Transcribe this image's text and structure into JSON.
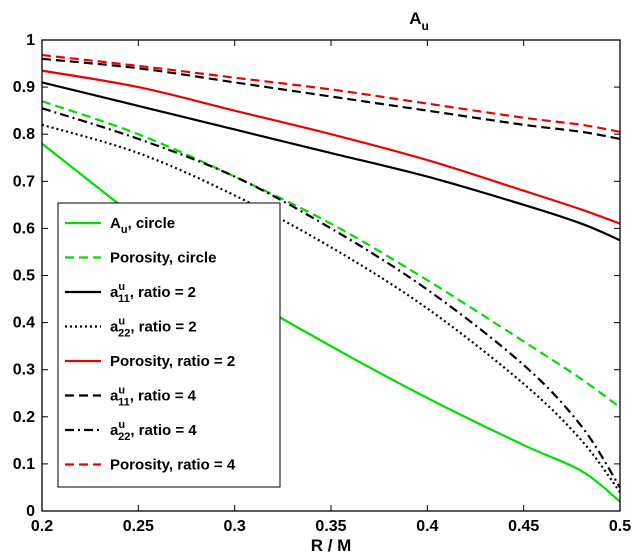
{
  "chart_data": {
    "type": "line",
    "title": "A",
    "title_sub": "u",
    "xlabel": "R / M",
    "ylabel": "",
    "xlim": [
      0.2,
      0.5
    ],
    "ylim": [
      0,
      1
    ],
    "x_ticks": [
      0.2,
      0.25,
      0.3,
      0.35,
      0.4,
      0.45,
      0.5
    ],
    "x_tick_labels": [
      "0.2",
      "0.25",
      "0.3",
      "0.35",
      "0.4",
      "0.45",
      "0.5"
    ],
    "y_ticks": [
      0,
      0.1,
      0.2,
      0.3,
      0.4,
      0.5,
      0.6,
      0.7,
      0.8,
      0.9,
      1
    ],
    "y_tick_labels": [
      "0",
      "0.1",
      "0.2",
      "0.3",
      "0.4",
      "0.5",
      "0.6",
      "0.7",
      "0.8",
      "0.9",
      "1"
    ],
    "grid": false,
    "legend_position": "bottom-left",
    "x": [
      0.2,
      0.25,
      0.3,
      0.35,
      0.4,
      0.45,
      0.48,
      0.5
    ],
    "series": [
      {
        "name": "A_u, circle",
        "legend": {
          "main": "A",
          "sup": "",
          "sub": "u",
          "suffix": ", circle"
        },
        "color": "#00dd00",
        "dash": "solid",
        "values": [
          0.78,
          0.62,
          0.47,
          0.35,
          0.24,
          0.14,
          0.085,
          0.02
        ]
      },
      {
        "name": "Porosity, circle",
        "legend": {
          "main": "Porosity, circle",
          "sup": "",
          "sub": "",
          "suffix": ""
        },
        "color": "#00dd00",
        "dash": "dashed",
        "values": [
          0.87,
          0.8,
          0.71,
          0.61,
          0.49,
          0.36,
          0.28,
          0.22
        ]
      },
      {
        "name": "a11u, ratio = 2",
        "legend": {
          "main": "a",
          "sup": "u",
          "sub": "11",
          "suffix": ", ratio = 2"
        },
        "color": "#000000",
        "dash": "solid",
        "values": [
          0.91,
          0.86,
          0.81,
          0.76,
          0.71,
          0.65,
          0.61,
          0.575
        ]
      },
      {
        "name": "a22u, ratio = 2",
        "legend": {
          "main": "a",
          "sup": "u",
          "sub": "22",
          "suffix": ", ratio = 2"
        },
        "color": "#000000",
        "dash": "dotted",
        "values": [
          0.82,
          0.76,
          0.67,
          0.56,
          0.43,
          0.27,
          0.15,
          0.04
        ]
      },
      {
        "name": "Porosity, ratio = 2",
        "legend": {
          "main": "Porosity, ratio = 2",
          "sup": "",
          "sub": "",
          "suffix": ""
        },
        "color": "#ee0000",
        "dash": "solid",
        "values": [
          0.935,
          0.9,
          0.85,
          0.8,
          0.745,
          0.68,
          0.64,
          0.61
        ]
      },
      {
        "name": "a11u, ratio = 4",
        "legend": {
          "main": "a",
          "sup": "u",
          "sub": "11",
          "suffix": ", ratio = 4"
        },
        "color": "#000000",
        "dash": "dashed",
        "values": [
          0.96,
          0.94,
          0.91,
          0.88,
          0.85,
          0.82,
          0.805,
          0.79
        ]
      },
      {
        "name": "a22u, ratio = 4",
        "legend": {
          "main": "a",
          "sup": "u",
          "sub": "22",
          "suffix": ", ratio = 4"
        },
        "color": "#000000",
        "dash": "dashdot",
        "values": [
          0.855,
          0.79,
          0.71,
          0.6,
          0.47,
          0.31,
          0.18,
          0.05
        ]
      },
      {
        "name": "Porosity, ratio = 4",
        "legend": {
          "main": "Porosity, ratio = 4",
          "sup": "",
          "sub": "",
          "suffix": ""
        },
        "color": "#ee0000",
        "dash": "dashed",
        "values": [
          0.968,
          0.945,
          0.92,
          0.895,
          0.865,
          0.835,
          0.82,
          0.805
        ]
      }
    ]
  }
}
